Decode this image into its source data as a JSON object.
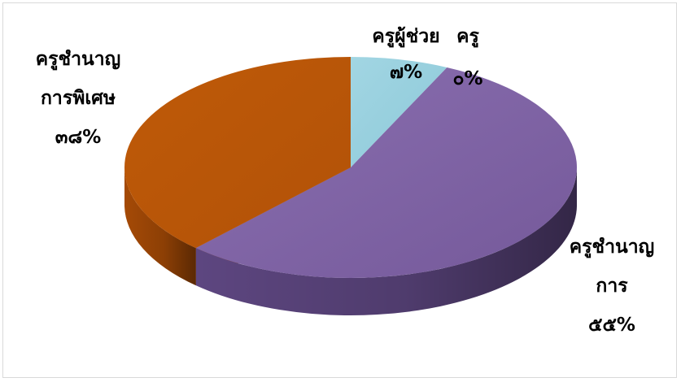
{
  "chart_data": {
    "type": "pie",
    "style": "3d",
    "categories": [
      "ครูผู้ช่วย",
      "ครู",
      "ครูชำนาญการ",
      "ครูชำนาญการพิเศษ"
    ],
    "values": [
      7,
      0,
      55,
      38
    ],
    "data_labels": [
      {
        "lines": [
          "ครูผู้ช่วย",
          "๗%"
        ]
      },
      {
        "lines": [
          "ครู",
          "๐%"
        ]
      },
      {
        "lines": [
          "ครูชำนาญ",
          "การ",
          "๕๕%"
        ]
      },
      {
        "lines": [
          "ครูชำนาญ",
          "การพิเศษ",
          "๓๘%"
        ]
      }
    ],
    "colors": [
      "#92cddc",
      "#4bacc6",
      "#8064a2",
      "#c55a11"
    ],
    "legend": "none",
    "grid": false
  }
}
